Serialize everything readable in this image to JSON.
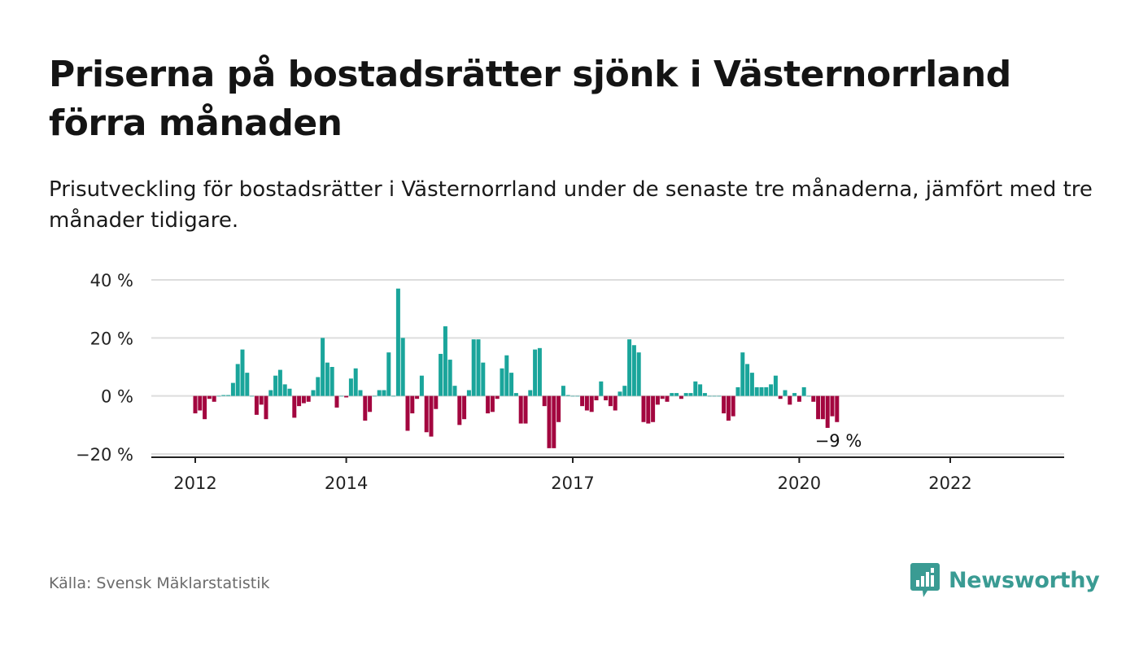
{
  "title": "Priserna på bostadsrätter sjönk i Västernorrland förra månaden",
  "subtitle": "Prisutveckling för bostadsrätter i Västernorrland under de senaste tre månaderna, jämfört med tre månader tidigare.",
  "source": "Källa: Svensk Mäklarstatistik",
  "logo": {
    "text": "Newsworthy",
    "icon": "newsworthy-bar-chart-icon"
  },
  "colors": {
    "positive": "#1aa59b",
    "negative": "#a3063f",
    "grid": "#dddddd",
    "axis": "#222222",
    "text": "#222222"
  },
  "chart_data": {
    "type": "bar",
    "title": "Priserna på bostadsrätter sjönk i Västernorrland förra månaden",
    "subtitle": "Prisutveckling för bostadsrätter i Västernorrland under de senaste tre månaderna, jämfört med tre månader tidigare.",
    "xlabel": "",
    "ylabel": "",
    "ylim": [
      -20,
      40
    ],
    "yticks": [
      40,
      20,
      0,
      -20
    ],
    "ytick_labels": [
      "40 %",
      "20 %",
      "0 %",
      "−20 %"
    ],
    "x_tick_labels": [
      "2012",
      "2014",
      "2017",
      "2020",
      "2022"
    ],
    "x_tick_index": [
      0,
      32,
      80,
      128,
      160
    ],
    "grid": true,
    "legend": "none",
    "last_label": "−9 %",
    "values": [
      -6,
      -5,
      -8,
      -1,
      -2,
      0,
      0.3,
      0.3,
      4.5,
      11,
      16,
      8,
      0,
      -6.5,
      -3,
      -8,
      2,
      7,
      9,
      4,
      2.5,
      -7.5,
      -3.5,
      -2.5,
      -2,
      2,
      6.5,
      20,
      11.5,
      10,
      -4,
      0,
      -0.5,
      6,
      9.5,
      2,
      -8.5,
      -5.5,
      0,
      2,
      2,
      15,
      0,
      37,
      20,
      -12,
      -6,
      -1,
      7,
      -12.5,
      -14,
      -4.5,
      14.5,
      24,
      12.5,
      3.5,
      -10,
      -8,
      2,
      19.5,
      19.5,
      11.5,
      -6,
      -5.5,
      -1,
      9.5,
      14,
      8,
      1,
      -9.5,
      -9.5,
      2,
      16,
      16.5,
      -3.5,
      -18,
      -18,
      -9,
      3.5,
      0.3,
      0,
      0,
      -3.5,
      -5,
      -5.5,
      -1.5,
      5,
      -1.5,
      -3.5,
      -5,
      1.5,
      3.5,
      19.5,
      17.5,
      15,
      -9,
      -9.5,
      -9,
      -3,
      -1,
      -2,
      1,
      1,
      -1,
      1,
      1,
      5,
      4,
      1,
      0,
      0,
      0,
      -6,
      -8.5,
      -7,
      3,
      15,
      11,
      8,
      3,
      3,
      3,
      4,
      7,
      -1,
      2,
      -3,
      1,
      -2,
      3,
      0,
      -2,
      -8,
      -8,
      -11,
      -7,
      -9
    ]
  }
}
